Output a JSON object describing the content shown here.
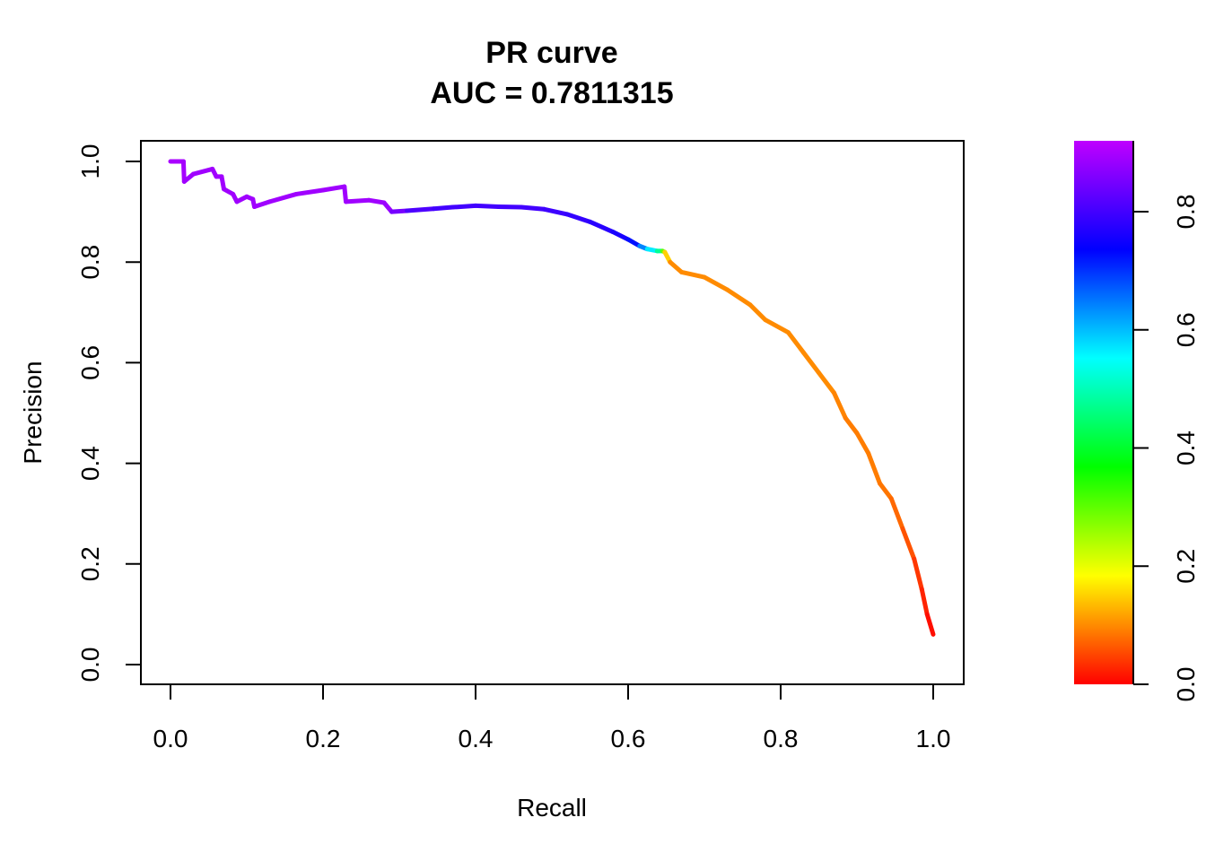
{
  "chart_data": {
    "type": "line",
    "title": "PR curve",
    "subtitle": "AUC = 0.7811315",
    "xlabel": "Recall",
    "ylabel": "Precision",
    "xlim": [
      0,
      1
    ],
    "ylim": [
      0,
      1
    ],
    "x_ticks": [
      "0.0",
      "0.2",
      "0.4",
      "0.6",
      "0.8",
      "1.0"
    ],
    "y_ticks": [
      "0.0",
      "0.2",
      "0.4",
      "0.6",
      "0.8",
      "1.0"
    ],
    "grid": false,
    "legend": "colorbar-right",
    "colorbar": {
      "ticks": [
        "0.0",
        "0.2",
        "0.4",
        "0.6",
        "0.8"
      ],
      "range": [
        0,
        0.92
      ],
      "colormap": "rainbow (red → yellow → green → cyan → blue → purple)",
      "colors": [
        "#ff0000",
        "#ffff00",
        "#00ff00",
        "#00ffff",
        "#0000ff",
        "#ff00ff"
      ]
    },
    "series": [
      {
        "line_width": "thick",
        "points": [
          {
            "x": 0.0,
            "y": 1.0,
            "t": 0.9
          },
          {
            "x": 0.017,
            "y": 1.0,
            "t": 0.9
          },
          {
            "x": 0.018,
            "y": 0.96,
            "t": 0.89
          },
          {
            "x": 0.03,
            "y": 0.975,
            "t": 0.89
          },
          {
            "x": 0.055,
            "y": 0.985,
            "t": 0.89
          },
          {
            "x": 0.06,
            "y": 0.97,
            "t": 0.89
          },
          {
            "x": 0.067,
            "y": 0.97,
            "t": 0.89
          },
          {
            "x": 0.07,
            "y": 0.945,
            "t": 0.89
          },
          {
            "x": 0.082,
            "y": 0.935,
            "t": 0.89
          },
          {
            "x": 0.087,
            "y": 0.92,
            "t": 0.89
          },
          {
            "x": 0.1,
            "y": 0.93,
            "t": 0.89
          },
          {
            "x": 0.108,
            "y": 0.925,
            "t": 0.89
          },
          {
            "x": 0.11,
            "y": 0.91,
            "t": 0.89
          },
          {
            "x": 0.13,
            "y": 0.92,
            "t": 0.89
          },
          {
            "x": 0.165,
            "y": 0.935,
            "t": 0.89
          },
          {
            "x": 0.2,
            "y": 0.943,
            "t": 0.89
          },
          {
            "x": 0.228,
            "y": 0.95,
            "t": 0.89
          },
          {
            "x": 0.23,
            "y": 0.92,
            "t": 0.89
          },
          {
            "x": 0.26,
            "y": 0.923,
            "t": 0.89
          },
          {
            "x": 0.28,
            "y": 0.918,
            "t": 0.89
          },
          {
            "x": 0.29,
            "y": 0.9,
            "t": 0.88
          },
          {
            "x": 0.31,
            "y": 0.902,
            "t": 0.82
          },
          {
            "x": 0.345,
            "y": 0.906,
            "t": 0.8
          },
          {
            "x": 0.37,
            "y": 0.909,
            "t": 0.8
          },
          {
            "x": 0.4,
            "y": 0.912,
            "t": 0.8
          },
          {
            "x": 0.43,
            "y": 0.91,
            "t": 0.8
          },
          {
            "x": 0.46,
            "y": 0.909,
            "t": 0.8
          },
          {
            "x": 0.49,
            "y": 0.905,
            "t": 0.8
          },
          {
            "x": 0.52,
            "y": 0.895,
            "t": 0.79
          },
          {
            "x": 0.55,
            "y": 0.88,
            "t": 0.78
          },
          {
            "x": 0.58,
            "y": 0.86,
            "t": 0.77
          },
          {
            "x": 0.6,
            "y": 0.845,
            "t": 0.75
          },
          {
            "x": 0.615,
            "y": 0.832,
            "t": 0.7
          },
          {
            "x": 0.625,
            "y": 0.826,
            "t": 0.58
          },
          {
            "x": 0.638,
            "y": 0.822,
            "t": 0.55
          },
          {
            "x": 0.645,
            "y": 0.822,
            "t": 0.4
          },
          {
            "x": 0.648,
            "y": 0.82,
            "t": 0.2
          },
          {
            "x": 0.655,
            "y": 0.8,
            "t": 0.1
          },
          {
            "x": 0.67,
            "y": 0.78,
            "t": 0.1
          },
          {
            "x": 0.7,
            "y": 0.77,
            "t": 0.1
          },
          {
            "x": 0.73,
            "y": 0.745,
            "t": 0.1
          },
          {
            "x": 0.76,
            "y": 0.715,
            "t": 0.1
          },
          {
            "x": 0.78,
            "y": 0.685,
            "t": 0.1
          },
          {
            "x": 0.81,
            "y": 0.66,
            "t": 0.1
          },
          {
            "x": 0.83,
            "y": 0.62,
            "t": 0.1
          },
          {
            "x": 0.85,
            "y": 0.58,
            "t": 0.1
          },
          {
            "x": 0.87,
            "y": 0.54,
            "t": 0.1
          },
          {
            "x": 0.885,
            "y": 0.49,
            "t": 0.09
          },
          {
            "x": 0.9,
            "y": 0.46,
            "t": 0.09
          },
          {
            "x": 0.915,
            "y": 0.42,
            "t": 0.09
          },
          {
            "x": 0.93,
            "y": 0.36,
            "t": 0.09
          },
          {
            "x": 0.945,
            "y": 0.33,
            "t": 0.08
          },
          {
            "x": 0.96,
            "y": 0.27,
            "t": 0.07
          },
          {
            "x": 0.975,
            "y": 0.21,
            "t": 0.05
          },
          {
            "x": 0.985,
            "y": 0.15,
            "t": 0.03
          },
          {
            "x": 0.992,
            "y": 0.1,
            "t": 0.02
          },
          {
            "x": 1.0,
            "y": 0.06,
            "t": 0.0
          }
        ]
      }
    ]
  }
}
